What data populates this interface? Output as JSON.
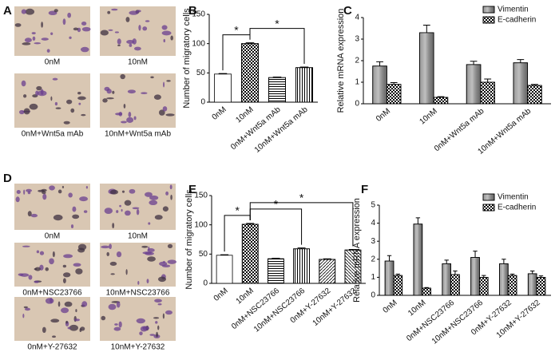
{
  "panels": [
    "A",
    "B",
    "C",
    "D",
    "E",
    "F"
  ],
  "images": {
    "A": [
      "0nM",
      "10nM",
      "0nM+Wnt5a mAb",
      "10nM+Wnt5a mAb"
    ],
    "D": [
      "0nM",
      "10nM",
      "0nM+NSC23766",
      "10nM+NSC23766",
      "0nM+Y-27632",
      "10nM+Y-27632"
    ]
  },
  "chart_data": [
    {
      "type": "bar",
      "ylabel": "Number of migratory cells",
      "color": "#ffffff",
      "categories": [
        "0nM",
        "10nM",
        "0nM+Wnt5a mAb",
        "10nM+Wnt5a mAb"
      ],
      "values": [
        48,
        100,
        42,
        59
      ],
      "errors": [
        1,
        1.5,
        1,
        1
      ],
      "ylim": [
        0,
        150
      ],
      "yticks": [
        0,
        50,
        100,
        150
      ],
      "annotations": [
        {
          "text": "*",
          "from": 0,
          "to": 1
        },
        {
          "text": "*",
          "from": 1,
          "to": 3
        }
      ]
    },
    {
      "type": "grouped_bar",
      "ylabel": "Relative mRNA expression",
      "categories": [
        "0nM",
        "10nM",
        "0nM+Wnt5a mAb",
        "10nM+Wnt5a mAb"
      ],
      "series": [
        {
          "name": "Vimentin",
          "color": "#8c8c8c",
          "values": [
            1.75,
            3.3,
            1.82,
            1.9
          ],
          "errors": [
            0.2,
            0.35,
            0.15,
            0.15
          ]
        },
        {
          "name": "E-cadherin",
          "color": "#ffffff",
          "values": [
            0.9,
            0.3,
            1.0,
            0.85
          ],
          "errors": [
            0.08,
            0.03,
            0.15,
            0.05
          ]
        }
      ],
      "ylim": [
        0,
        4
      ],
      "yticks": [
        0,
        1,
        2,
        3,
        4
      ],
      "legend": "upper right"
    },
    {
      "type": "bar",
      "ylabel": "Number of migratory cells",
      "color": "#ffffff",
      "categories": [
        "0nM",
        "10nM",
        "0nM+NSC23766",
        "10nM+NSC23766",
        "0nM+Y-27632",
        "10nM+Y-27632"
      ],
      "values": [
        48,
        101,
        42,
        59,
        41,
        57
      ],
      "errors": [
        1,
        1.5,
        1,
        1.5,
        1,
        1
      ],
      "ylim": [
        0,
        150
      ],
      "yticks": [
        0,
        50,
        100,
        150
      ],
      "annotations": [
        {
          "text": "*",
          "from": 0,
          "to": 1
        },
        {
          "text": "*",
          "from": 1,
          "to": 3
        },
        {
          "text": "*",
          "from": 1,
          "to": 5
        }
      ]
    },
    {
      "type": "grouped_bar",
      "ylabel": "Relative mRNA expression",
      "categories": [
        "0nM",
        "10nM",
        "0nM+NSC23766",
        "10nM+NSC23766",
        "0nM+Y-27632",
        "10nM+Y-27632"
      ],
      "series": [
        {
          "name": "Vimentin",
          "color": "#8c8c8c",
          "values": [
            1.9,
            3.95,
            1.75,
            2.1,
            1.75,
            1.2
          ],
          "errors": [
            0.3,
            0.35,
            0.2,
            0.35,
            0.25,
            0.15
          ]
        },
        {
          "name": "E-cadherin",
          "color": "#ffffff",
          "values": [
            1.1,
            0.4,
            1.15,
            1.0,
            1.1,
            1.0
          ],
          "errors": [
            0.08,
            0.03,
            0.2,
            0.1,
            0.08,
            0.08
          ]
        }
      ],
      "ylim": [
        0,
        5
      ],
      "yticks": [
        0,
        1,
        2,
        3,
        4,
        5
      ],
      "legend": "upper right"
    }
  ]
}
